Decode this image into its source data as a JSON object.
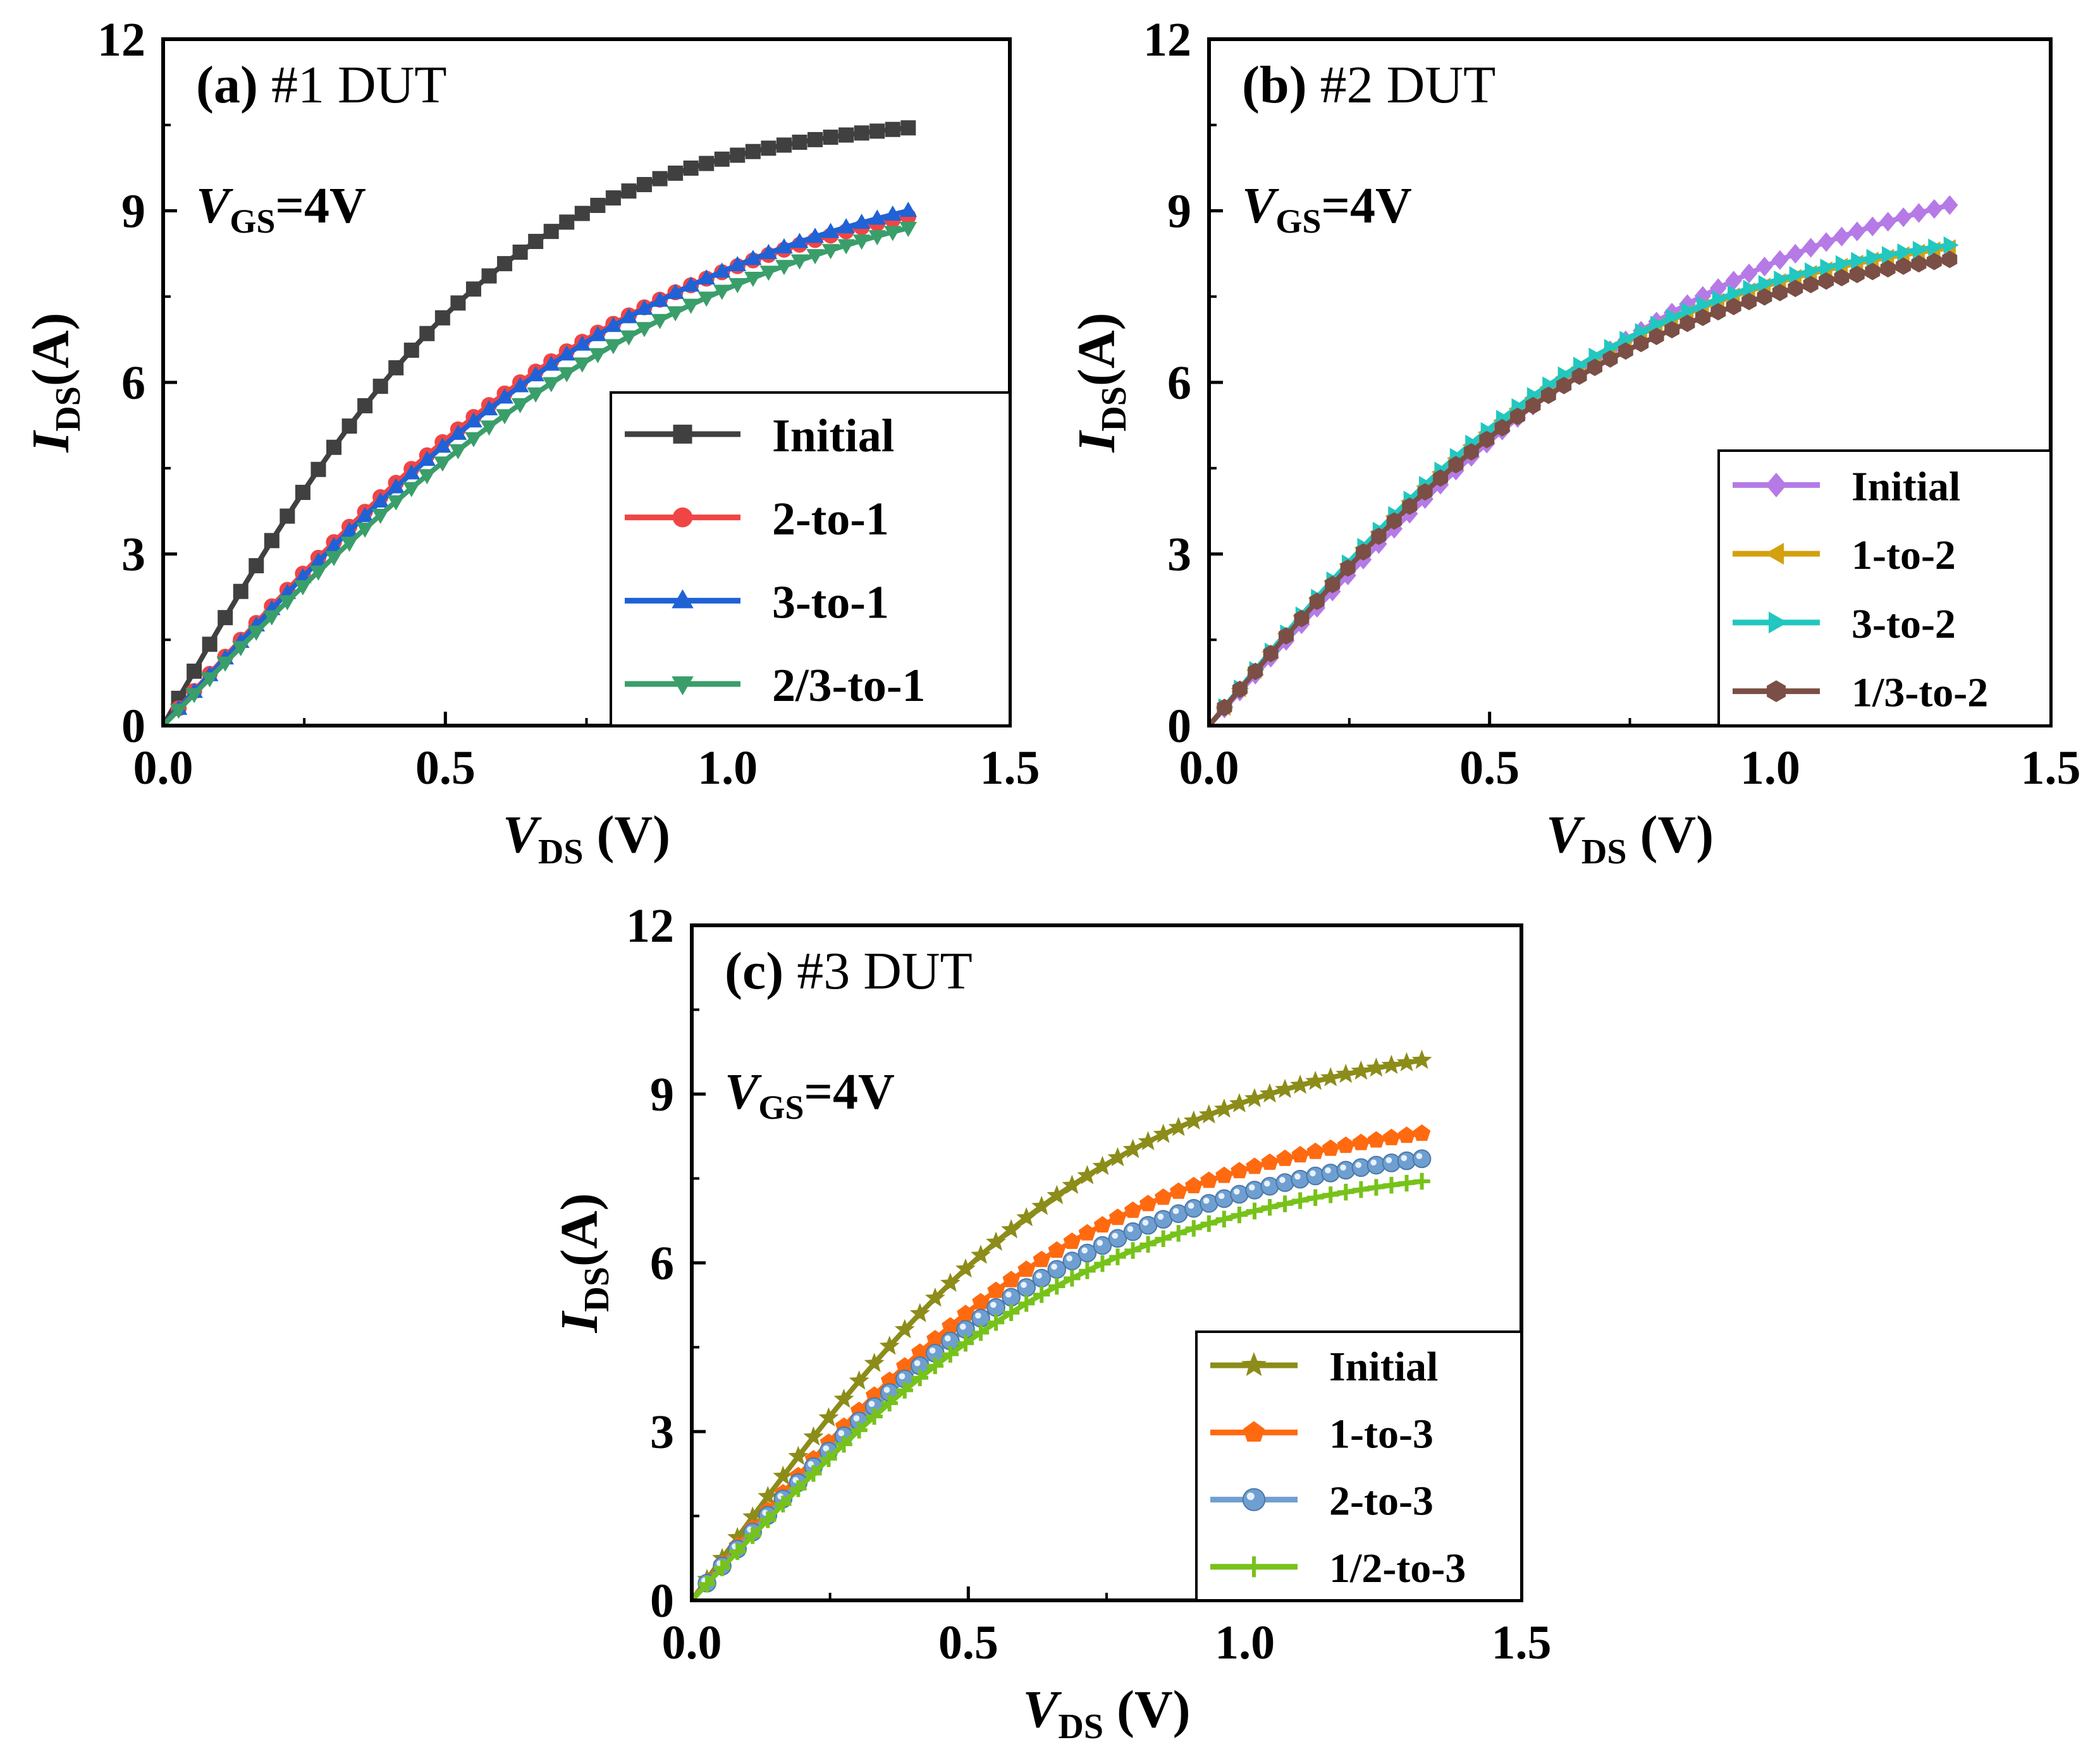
{
  "chart_data": [
    {
      "type": "line",
      "panel": "a",
      "title_letter": "(a)",
      "title_text": "#1 DUT",
      "annotation": {
        "main": "V",
        "sub": "GS",
        "rest": "=4V"
      },
      "xlabel": {
        "main": "V",
        "sub": "DS",
        "rest": " (V)"
      },
      "ylabel": {
        "main": "I",
        "sub": "DS",
        "rest": "(A)"
      },
      "xlim": [
        0,
        1.5
      ],
      "ylim": [
        0,
        12
      ],
      "xticks": [
        "0.0",
        "0.5",
        "1.0",
        "1.5"
      ],
      "yticks": [
        "0",
        "3",
        "6",
        "9",
        "12"
      ],
      "legend_position": "bottom-right",
      "series": [
        {
          "name": "Initial",
          "color": "#404040",
          "marker": "square",
          "vsat": 0.62,
          "imax": 10.45
        },
        {
          "name": "2-to-1",
          "color": "#f04545",
          "marker": "circle",
          "vsat": 0.9,
          "imax": 8.9
        },
        {
          "name": "3-to-1",
          "color": "#1f62d6",
          "marker": "triangle-up",
          "vsat": 0.95,
          "imax": 9.0
        },
        {
          "name": "2/3-to-1",
          "color": "#3a9e6a",
          "marker": "triangle-down",
          "vsat": 1.0,
          "imax": 8.7
        }
      ]
    },
    {
      "type": "line",
      "panel": "b",
      "title_letter": "(b)",
      "title_text": "#2 DUT",
      "annotation": {
        "main": "V",
        "sub": "GS",
        "rest": "=4V"
      },
      "xlabel": {
        "main": "V",
        "sub": "DS",
        "rest": " (V)"
      },
      "ylabel": {
        "main": "I",
        "sub": "DS",
        "rest": "(A)"
      },
      "xlim": [
        0,
        1.5
      ],
      "ylim": [
        0,
        12
      ],
      "xticks": [
        "0.0",
        "0.5",
        "1.0",
        "1.5"
      ],
      "yticks": [
        "0",
        "3",
        "6",
        "9",
        "12"
      ],
      "legend_position": "bottom-right",
      "series": [
        {
          "name": "Initial",
          "color": "#b57ae6",
          "marker": "diamond",
          "vsat": 0.95,
          "imax": 9.1
        },
        {
          "name": "1-to-2",
          "color": "#d4a010",
          "marker": "triangle-left",
          "vsat": 0.75,
          "imax": 8.35
        },
        {
          "name": "3-to-2",
          "color": "#22c7c0",
          "marker": "triangle-right",
          "vsat": 0.75,
          "imax": 8.4
        },
        {
          "name": "1/3-to-2",
          "color": "#7b4f45",
          "marker": "hexagon",
          "vsat": 0.75,
          "imax": 8.15
        }
      ]
    },
    {
      "type": "line",
      "panel": "c",
      "title_letter": "(c)",
      "title_text": "#3 DUT",
      "annotation": {
        "main": "V",
        "sub": "GS",
        "rest": "=4V"
      },
      "xlabel": {
        "main": "V",
        "sub": "DS",
        "rest": " (V)"
      },
      "ylabel": {
        "main": "I",
        "sub": "DS",
        "rest": "(A)"
      },
      "xlim": [
        0,
        1.5
      ],
      "ylim": [
        0,
        12
      ],
      "xticks": [
        "0.0",
        "0.5",
        "1.0",
        "1.5"
      ],
      "yticks": [
        "0",
        "3",
        "6",
        "9",
        "12"
      ],
      "legend_position": "bottom-right",
      "series": [
        {
          "name": "Initial",
          "color": "#8c8c1a",
          "marker": "star",
          "vsat": 0.75,
          "imax": 9.6
        },
        {
          "name": "1-to-3",
          "color": "#ff6a10",
          "marker": "pentagon",
          "vsat": 0.75,
          "imax": 8.3
        },
        {
          "name": "2-to-3",
          "color": "#6f9fd0",
          "marker": "sphere",
          "vsat": 0.75,
          "imax": 7.85
        },
        {
          "name": "1/2-to-3",
          "color": "#77c21a",
          "marker": "plus",
          "vsat": 0.75,
          "imax": 7.45
        }
      ]
    }
  ]
}
